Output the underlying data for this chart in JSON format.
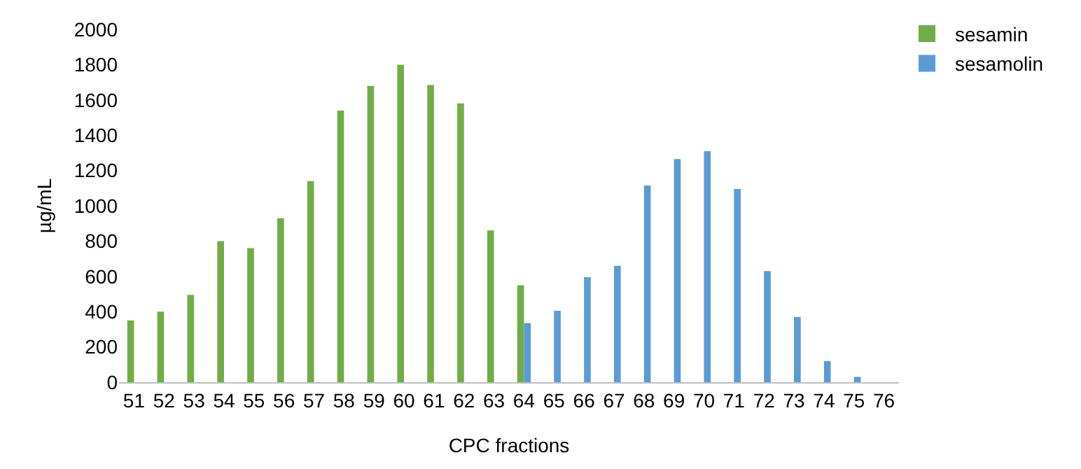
{
  "chart_data": {
    "type": "bar",
    "xlabel": "CPC fractions",
    "ylabel": "µg/mL",
    "categories": [
      "51",
      "52",
      "53",
      "54",
      "55",
      "56",
      "57",
      "58",
      "59",
      "60",
      "61",
      "62",
      "63",
      "64",
      "65",
      "66",
      "67",
      "68",
      "69",
      "70",
      "71",
      "72",
      "73",
      "74",
      "75",
      "76"
    ],
    "series": [
      {
        "name": "sesamin",
        "color": "#70ad47",
        "values": [
          350,
          400,
          495,
          800,
          760,
          930,
          1140,
          1540,
          1680,
          1800,
          1685,
          1580,
          860,
          550,
          null,
          null,
          null,
          null,
          null,
          null,
          null,
          null,
          null,
          null,
          null,
          null
        ]
      },
      {
        "name": "sesamolin",
        "color": "#5b9bd5",
        "values": [
          null,
          null,
          null,
          null,
          null,
          null,
          null,
          null,
          null,
          null,
          null,
          null,
          null,
          335,
          405,
          595,
          660,
          1115,
          1265,
          1310,
          1095,
          630,
          370,
          120,
          30,
          null
        ]
      }
    ],
    "ylim": [
      0,
      2000
    ],
    "yticks": [
      0,
      200,
      400,
      600,
      800,
      1000,
      1200,
      1400,
      1600,
      1800,
      2000
    ],
    "grid": false,
    "legend": "top right"
  }
}
